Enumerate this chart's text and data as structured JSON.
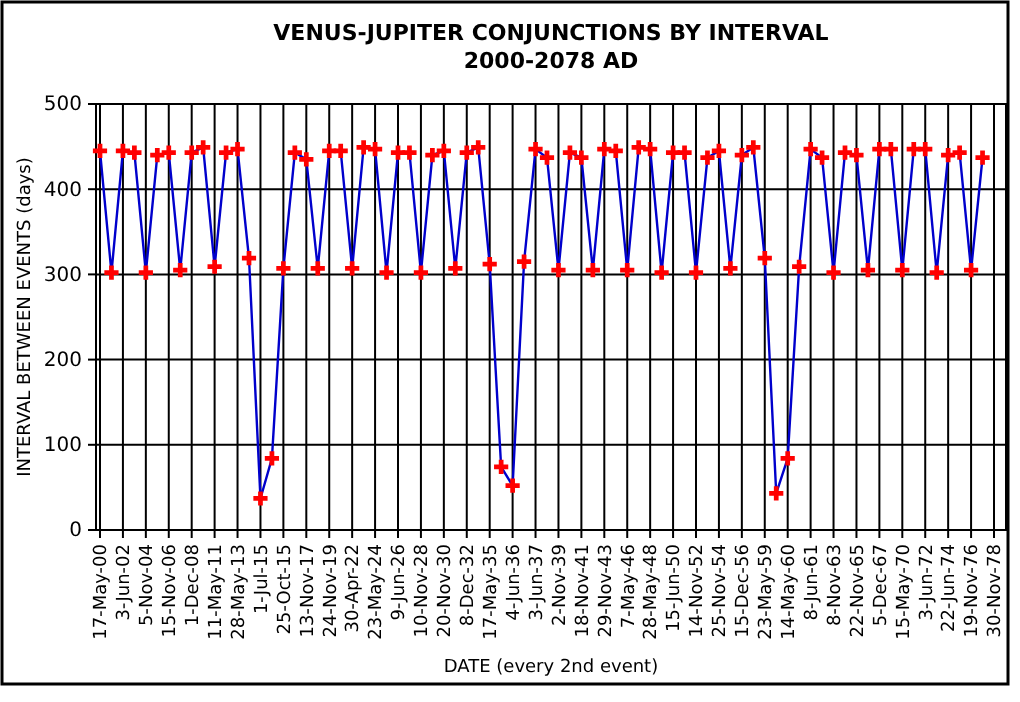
{
  "chart_data": {
    "type": "line",
    "title": "VENUS-JUPITER CONJUNCTIONS BY INTERVAL",
    "subtitle": "2000-2078 AD",
    "xlabel": "DATE (every 2nd event)",
    "ylabel": "INTERVAL BETWEEN EVENTS (days)",
    "categories": [
      "17-May-00",
      null,
      "3-Jun-02",
      null,
      "5-Nov-04",
      null,
      "15-Nov-06",
      null,
      "1-Dec-08",
      null,
      "11-May-11",
      null,
      "28-May-13",
      null,
      "1-Jul-15",
      null,
      "25-Oct-15",
      null,
      "13-Nov-17",
      null,
      "24-Nov-19",
      null,
      "30-Apr-22",
      null,
      "23-May-24",
      null,
      "9-Jun-26",
      null,
      "10-Nov-28",
      null,
      "20-Nov-30",
      null,
      "8-Dec-32",
      null,
      "17-May-35",
      null,
      "4-Jun-36",
      null,
      "3-Jun-37",
      null,
      "2-Nov-39",
      null,
      "18-Nov-41",
      null,
      "29-Nov-43",
      null,
      "7-May-46",
      null,
      "28-May-48",
      null,
      "15-Jun-50",
      null,
      "14-Nov-52",
      null,
      "25-Nov-54",
      null,
      "15-Dec-56",
      null,
      "23-May-59",
      null,
      "14-May-60",
      null,
      "8-Jun-61",
      null,
      "8-Nov-63",
      null,
      "22-Nov-65",
      null,
      "5-Dec-67",
      null,
      "15-May-70",
      null,
      "3-Jun-72",
      null,
      "22-Jun-74",
      null,
      "19-Nov-76",
      null,
      "30-Nov-78"
    ],
    "series": [
      {
        "color": "#0000cc",
        "values": [
          445,
          302,
          445,
          443,
          302,
          440,
          443,
          305,
          443,
          449,
          309,
          443,
          447,
          319,
          37,
          84,
          307,
          443,
          435,
          307,
          445,
          445,
          307,
          449,
          447,
          302,
          443,
          443,
          302,
          440,
          445,
          307,
          443,
          449,
          312,
          74,
          52,
          315,
          447,
          437,
          305,
          443,
          437,
          305,
          447,
          445,
          305,
          449,
          447,
          302,
          443,
          443,
          302,
          437,
          445,
          307,
          440,
          449,
          319,
          43,
          84,
          309,
          447,
          437,
          302,
          443,
          440,
          305,
          447,
          447,
          305,
          447,
          447,
          302,
          440,
          443,
          305,
          437,
          null
        ]
      }
    ],
    "ylim": [
      0,
      500
    ],
    "yticks": [
      0,
      100,
      200,
      300,
      400,
      500
    ],
    "grid": true,
    "marker": "cross"
  }
}
